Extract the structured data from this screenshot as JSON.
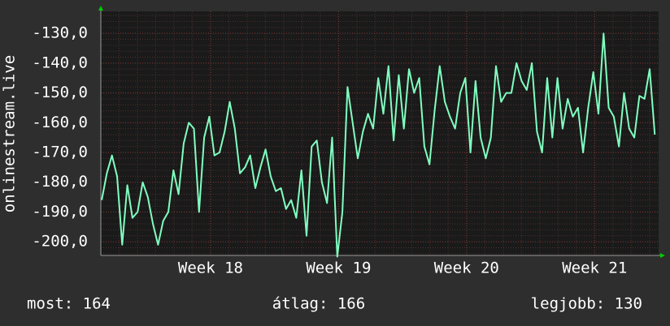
{
  "chart_data": {
    "type": "line",
    "y_label": "onlinestream.live",
    "x": [
      17.15,
      17.19,
      17.23,
      17.27,
      17.31,
      17.35,
      17.39,
      17.43,
      17.47,
      17.51,
      17.55,
      17.59,
      17.63,
      17.67,
      17.71,
      17.75,
      17.79,
      17.83,
      17.87,
      17.91,
      17.95,
      17.99,
      18.03,
      18.07,
      18.11,
      18.15,
      18.19,
      18.23,
      18.27,
      18.31,
      18.35,
      18.39,
      18.43,
      18.47,
      18.51,
      18.55,
      18.59,
      18.63,
      18.67,
      18.71,
      18.75,
      18.79,
      18.83,
      18.87,
      18.91,
      18.95,
      18.99,
      19.03,
      19.07,
      19.11,
      19.15,
      19.19,
      19.23,
      19.27,
      19.31,
      19.35,
      19.39,
      19.43,
      19.47,
      19.51,
      19.55,
      19.59,
      19.63,
      19.67,
      19.71,
      19.75,
      19.79,
      19.83,
      19.87,
      19.91,
      19.95,
      19.99,
      20.03,
      20.07,
      20.11,
      20.15,
      20.19,
      20.23,
      20.27,
      20.31,
      20.35,
      20.39,
      20.43,
      20.47,
      20.51,
      20.55,
      20.59,
      20.63,
      20.67,
      20.71,
      20.75,
      20.79,
      20.83,
      20.87,
      20.91,
      20.95,
      20.99,
      21.03,
      21.07,
      21.11,
      21.15,
      21.19,
      21.23,
      21.27,
      21.31,
      21.35,
      21.39,
      21.43,
      21.47
    ],
    "values": [
      -186,
      -177,
      -171,
      -178,
      -201,
      -181,
      -192,
      -190,
      -180,
      -185,
      -194,
      -201,
      -193,
      -190,
      -176,
      -184,
      -167,
      -160,
      -162,
      -190,
      -165,
      -158,
      -171,
      -170,
      -163,
      -153,
      -162,
      -177,
      -175,
      -171,
      -182,
      -175,
      -169,
      -178,
      -183,
      -182,
      -189,
      -186,
      -192,
      -176,
      -198,
      -168,
      -166,
      -180,
      -187,
      -165,
      -205,
      -190,
      -148,
      -160,
      -172,
      -163,
      -157,
      -162,
      -145,
      -157,
      -141,
      -166,
      -144,
      -162,
      -142,
      -150,
      -145,
      -168,
      -174,
      -156,
      -141,
      -153,
      -158,
      -162,
      -150,
      -145,
      -170,
      -146,
      -165,
      -172,
      -165,
      -141,
      -153,
      -150,
      -150,
      -140,
      -146,
      -149,
      -140,
      -163,
      -170,
      -145,
      -165,
      -145,
      -162,
      -152,
      -158,
      -155,
      -170,
      -155,
      -143,
      -157,
      -130,
      -155,
      -158,
      -168,
      -150,
      -162,
      -165,
      -151,
      -152,
      -142,
      -164
    ],
    "color": "#80ffc0",
    "xlim": [
      17.143,
      21.5
    ],
    "xticks": [
      {
        "value": 18,
        "label": "Week 18"
      },
      {
        "value": 19,
        "label": "Week 19"
      },
      {
        "value": 20,
        "label": "Week 20"
      },
      {
        "value": 21,
        "label": "Week 21"
      }
    ],
    "minor_xticks": [
      17.286,
      17.429,
      17.571,
      17.714,
      17.857,
      18.143,
      18.286,
      18.429,
      18.571,
      18.714,
      18.857,
      19.143,
      19.286,
      19.429,
      19.571,
      19.714,
      19.857,
      20.143,
      20.286,
      20.429,
      20.571,
      20.714,
      20.857,
      21.143,
      21.286,
      21.429
    ],
    "ylim": [
      -204.6,
      -122.6
    ],
    "yticks": [
      {
        "value": -130,
        "label": "-130,0"
      },
      {
        "value": -140,
        "label": "-140,0"
      },
      {
        "value": -150,
        "label": "-150,0"
      },
      {
        "value": -160,
        "label": "-160,0"
      },
      {
        "value": -170,
        "label": "-170,0"
      },
      {
        "value": -180,
        "label": "-180,0"
      },
      {
        "value": -190,
        "label": "-190,0"
      },
      {
        "value": -200,
        "label": "-200,0"
      }
    ],
    "minor_yticks": [
      -204,
      -202,
      -198,
      -196,
      -194,
      -192,
      -188,
      -186,
      -184,
      -182,
      -178,
      -176,
      -174,
      -172,
      -168,
      -166,
      -164,
      -162,
      -158,
      -156,
      -154,
      -152,
      -148,
      -146,
      -144,
      -142,
      -138,
      -136,
      -134,
      -132,
      -128,
      -126,
      -124
    ],
    "grid": true,
    "footer": [
      "most: 164",
      "átlag: 166",
      "legjobb: 130"
    ]
  }
}
